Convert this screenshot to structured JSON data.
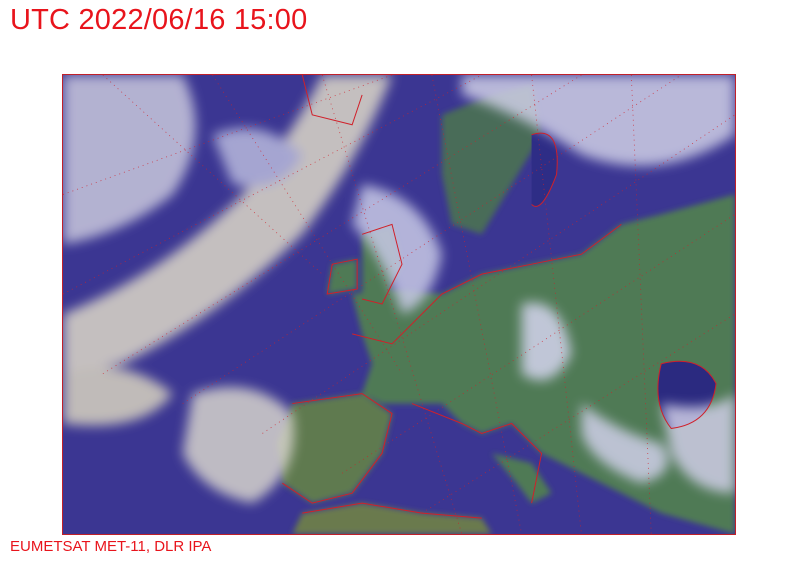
{
  "header": {
    "title": "UTC 2022/06/16 15:00"
  },
  "footer": {
    "credit": "EUMETSAT MET-11, DLR IPA"
  },
  "map": {
    "type": "satellite-image",
    "region": "Europe",
    "overlay_color": "#d0202a",
    "ocean_color": "#3a3590",
    "land_color": "#4f7a55",
    "cloud_color": "#e0dccb"
  }
}
